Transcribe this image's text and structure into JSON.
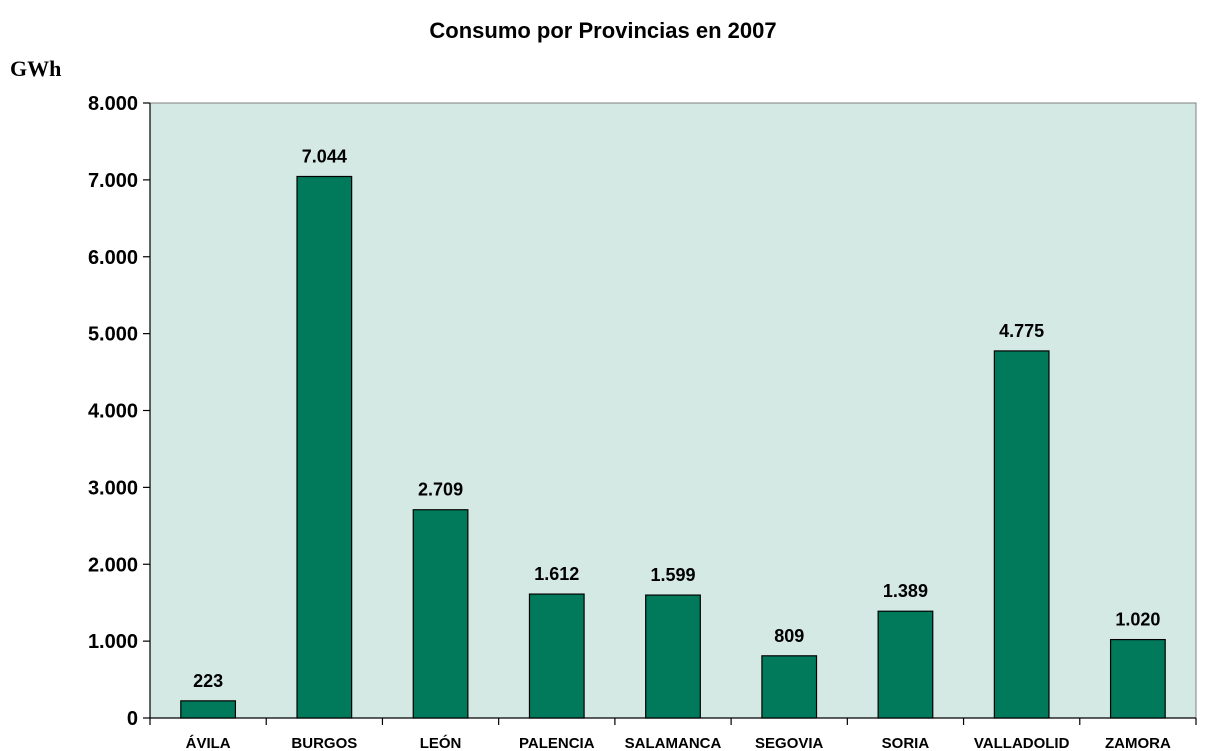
{
  "chart_data": {
    "type": "bar",
    "title": "Consumo por Provincias en 2007",
    "ylabel": "GWh",
    "xlabel": "",
    "categories": [
      "ÁVILA",
      "BURGOS",
      "LEÓN",
      "PALENCIA",
      "SALAMANCA",
      "SEGOVIA",
      "SORIA",
      "VALLADOLID",
      "ZAMORA"
    ],
    "values": [
      223,
      7044,
      2709,
      1612,
      1599,
      809,
      1389,
      4775,
      1020
    ],
    "value_labels": [
      "223",
      "7.044",
      "2.709",
      "1.612",
      "1.599",
      "809",
      "1.389",
      "4.775",
      "1.020"
    ],
    "ylim": [
      0,
      8000
    ],
    "yticks": [
      0,
      1000,
      2000,
      3000,
      4000,
      5000,
      6000,
      7000,
      8000
    ],
    "ytick_labels": [
      "0",
      "1.000",
      "2.000",
      "3.000",
      "4.000",
      "5.000",
      "6.000",
      "7.000",
      "8.000"
    ],
    "grid": false,
    "legend": "none",
    "colors": {
      "bar": "#007a5a",
      "plot_background": "#d4e8e4",
      "axis": "#000000"
    }
  }
}
